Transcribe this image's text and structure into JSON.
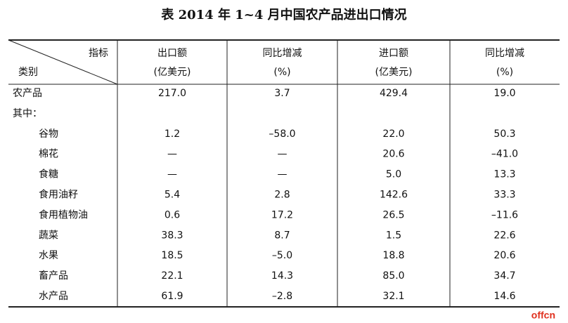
{
  "title": "表  2014 年 1~4 月中国农产品进出口情况",
  "table": {
    "corner": {
      "top": "指标",
      "bottom": "类别"
    },
    "columns": [
      [
        "出口额",
        "(亿美元)"
      ],
      [
        "同比增减",
        "(%)"
      ],
      [
        "进口额",
        "(亿美元)"
      ],
      [
        "同比增减",
        "(%)"
      ]
    ],
    "rows": [
      [
        "农产品",
        "217.0",
        "3.7",
        "429.4",
        "19.0"
      ],
      [
        "其中："
      ],
      [
        "谷物",
        "1.2",
        "–58.0",
        "22.0",
        "50.3"
      ],
      [
        "棉花",
        "—",
        "—",
        "20.6",
        "–41.0"
      ],
      [
        "食糖",
        "—",
        "—",
        "5.0",
        "13.3"
      ],
      [
        "食用油籽",
        "5.4",
        "2.8",
        "142.6",
        "33.3"
      ],
      [
        "食用植物油",
        "0.6",
        "17.2",
        "26.5",
        "–11.6"
      ],
      [
        "蔬菜",
        "38.3",
        "8.7",
        "1.5",
        "22.6"
      ],
      [
        "水果",
        "18.5",
        "–5.0",
        "18.8",
        "20.6"
      ],
      [
        "畜产品",
        "22.1",
        "14.3",
        "85.0",
        "34.7"
      ],
      [
        "水产品",
        "61.9",
        "–2.8",
        "32.1",
        "14.6"
      ]
    ]
  },
  "watermark": "offcn"
}
